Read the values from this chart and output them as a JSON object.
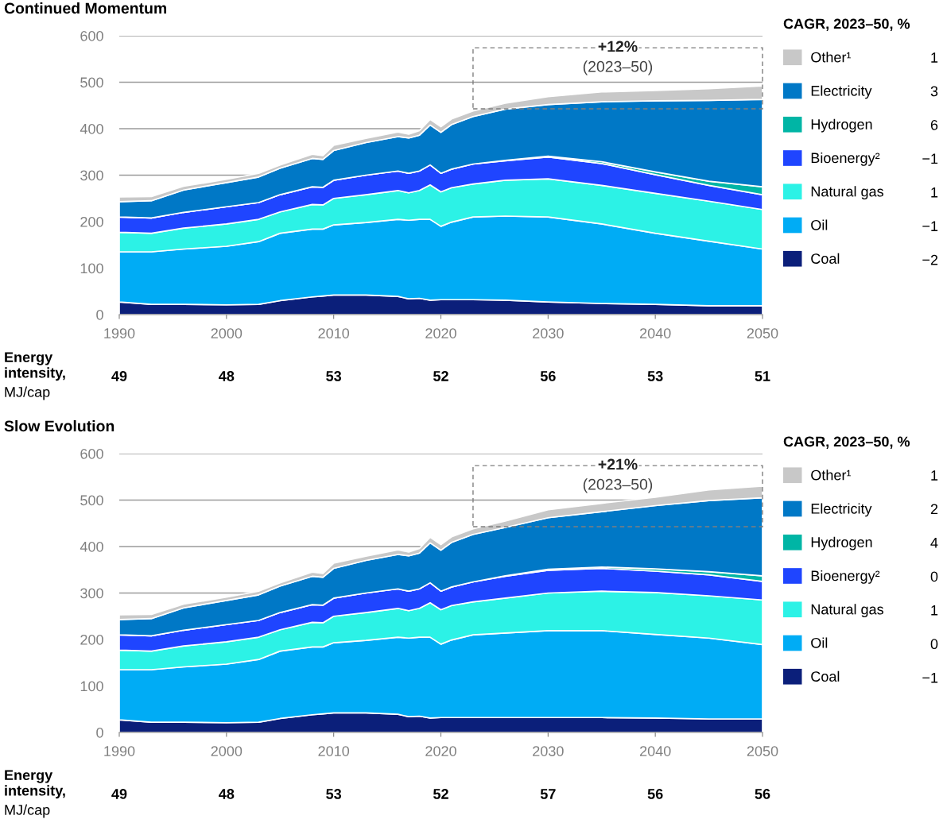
{
  "chart_data": [
    {
      "type": "area",
      "title": "Continued Momentum",
      "stacked": true,
      "grid": "y",
      "legend": "right",
      "legend_title": "CAGR, 2023–50, %",
      "x": [
        1990,
        1993,
        1996,
        2000,
        2003,
        2005,
        2008,
        2009,
        2010,
        2013,
        2016,
        2017,
        2018,
        2019,
        2020,
        2021,
        2023,
        2026,
        2030,
        2035,
        2040,
        2045,
        2050
      ],
      "xlim": [
        1990,
        2050
      ],
      "xticks": [
        1990,
        2000,
        2010,
        2020,
        2030,
        2040,
        2050
      ],
      "ylim": [
        0,
        600
      ],
      "yticks": [
        0,
        100,
        200,
        300,
        400,
        500,
        600
      ],
      "series": [
        {
          "name": "Coal",
          "color": "#0b1f7a",
          "values": [
            27,
            22,
            22,
            21,
            22,
            30,
            38,
            40,
            42,
            42,
            39,
            34,
            35,
            31,
            32,
            32,
            32,
            31,
            27,
            24,
            22,
            19,
            19
          ]
        },
        {
          "name": "Oil",
          "color": "#00acf5",
          "values": [
            108,
            113,
            119,
            126,
            135,
            145,
            146,
            144,
            151,
            156,
            166,
            169,
            170,
            174,
            158,
            167,
            178,
            181,
            183,
            171,
            153,
            139,
            122
          ]
        },
        {
          "name": "Natural gas",
          "color": "#2cf2e6",
          "values": [
            42,
            40,
            45,
            48,
            48,
            46,
            53,
            52,
            57,
            60,
            62,
            59,
            62,
            74,
            74,
            74,
            71,
            77,
            82,
            83,
            86,
            86,
            85
          ]
        },
        {
          "name": "Bioenergy²",
          "color": "#1f45ff",
          "values": [
            33,
            33,
            34,
            37,
            36,
            37,
            38,
            38,
            39,
            42,
            42,
            42,
            42,
            43,
            40,
            40,
            43,
            42,
            47,
            47,
            40,
            34,
            32
          ]
        },
        {
          "name": "Hydrogen",
          "color": "#00b5a5",
          "values": [
            0,
            0,
            0,
            0,
            0,
            0,
            0,
            0,
            0,
            0,
            0,
            0,
            0,
            0,
            0,
            0,
            0,
            1,
            2,
            4,
            6,
            9,
            17
          ]
        },
        {
          "name": "Electricity",
          "color": "#0078c6",
          "values": [
            33,
            37,
            48,
            52,
            55,
            57,
            61,
            60,
            64,
            70,
            74,
            76,
            77,
            86,
            88,
            96,
            102,
            110,
            111,
            129,
            153,
            174,
            188
          ]
        },
        {
          "name": "Other¹",
          "color": "#c8c8c8",
          "values": [
            10,
            9,
            8,
            7,
            8,
            7,
            9,
            8,
            11,
            9,
            10,
            8,
            10,
            12,
            12,
            12,
            12,
            13,
            17,
            21,
            22,
            25,
            29
          ]
        }
      ],
      "annotations": [
        "Energy\nintensity,",
        "MJ/cap",
        "49",
        "48",
        "53",
        "52",
        "56",
        "53",
        "51",
        "1",
        "3",
        "6",
        "−1",
        "1",
        "−1",
        "−2",
        "+12%\n(2023–50)"
      ]
    },
    {
      "type": "area",
      "title": "Slow Evolution",
      "stacked": true,
      "grid": "y",
      "legend": "right",
      "legend_title": "CAGR, 2023–50, %",
      "x": [
        1990,
        1993,
        1996,
        2000,
        2003,
        2005,
        2008,
        2009,
        2010,
        2013,
        2016,
        2017,
        2018,
        2019,
        2020,
        2021,
        2023,
        2026,
        2030,
        2035,
        2040,
        2045,
        2050
      ],
      "xlim": [
        1990,
        2050
      ],
      "xticks": [
        1990,
        2000,
        2010,
        2020,
        2030,
        2040,
        2050
      ],
      "ylim": [
        0,
        600
      ],
      "yticks": [
        0,
        100,
        200,
        300,
        400,
        500,
        600
      ],
      "series": [
        {
          "name": "Coal",
          "color": "#0b1f7a",
          "values": [
            27,
            22,
            22,
            21,
            22,
            30,
            38,
            40,
            42,
            42,
            39,
            34,
            35,
            31,
            32,
            32,
            32,
            32,
            32,
            32,
            31,
            29,
            29
          ]
        },
        {
          "name": "Oil",
          "color": "#00acf5",
          "values": [
            108,
            113,
            119,
            126,
            135,
            145,
            146,
            144,
            151,
            156,
            166,
            169,
            170,
            174,
            158,
            167,
            178,
            182,
            187,
            187,
            180,
            174,
            160
          ]
        },
        {
          "name": "Natural gas",
          "color": "#2cf2e6",
          "values": [
            42,
            40,
            45,
            48,
            48,
            46,
            53,
            52,
            57,
            60,
            62,
            59,
            62,
            74,
            74,
            74,
            71,
            75,
            81,
            85,
            90,
            91,
            96
          ]
        },
        {
          "name": "Bioenergy²",
          "color": "#1f45ff",
          "values": [
            33,
            33,
            34,
            37,
            36,
            37,
            38,
            38,
            39,
            42,
            42,
            42,
            42,
            43,
            40,
            40,
            43,
            47,
            49,
            49,
            46,
            45,
            40
          ]
        },
        {
          "name": "Hydrogen",
          "color": "#00b5a5",
          "values": [
            0,
            0,
            0,
            0,
            0,
            0,
            0,
            0,
            0,
            0,
            0,
            0,
            0,
            0,
            0,
            0,
            0,
            1,
            2,
            3,
            5,
            7,
            12
          ]
        },
        {
          "name": "Electricity",
          "color": "#0078c6",
          "values": [
            33,
            37,
            48,
            52,
            55,
            57,
            61,
            60,
            64,
            70,
            74,
            76,
            77,
            86,
            88,
            96,
            102,
            104,
            111,
            119,
            136,
            153,
            168
          ]
        },
        {
          "name": "Other¹",
          "color": "#c8c8c8",
          "values": [
            10,
            9,
            8,
            7,
            8,
            7,
            9,
            8,
            11,
            9,
            10,
            8,
            10,
            12,
            12,
            12,
            12,
            14,
            17,
            18,
            18,
            23,
            25
          ]
        }
      ],
      "annotations": [
        "Energy\nintensity,",
        "MJ/cap",
        "49",
        "48",
        "53",
        "52",
        "57",
        "56",
        "56",
        "1",
        "2",
        "4",
        "0",
        "1",
        "0",
        "−1",
        "+21%\n(2023–50)"
      ]
    }
  ]
}
